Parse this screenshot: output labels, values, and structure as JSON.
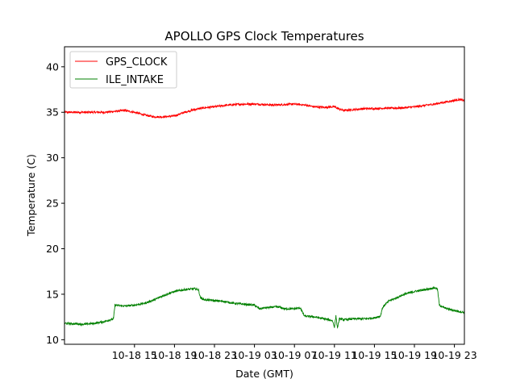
{
  "chart_data": {
    "type": "line",
    "title": "APOLLO GPS Clock Temperatures",
    "xlabel": "Date (GMT)",
    "ylabel": "Temperature (C)",
    "x_unit": "hours since 10-18 08:00 GMT",
    "xlim": [
      0,
      40
    ],
    "ylim": [
      9.5,
      42.2
    ],
    "yticks": [
      10,
      15,
      20,
      25,
      30,
      35,
      40
    ],
    "xticks": [
      {
        "x": 7,
        "label": "10-18 15"
      },
      {
        "x": 11,
        "label": "10-18 19"
      },
      {
        "x": 15,
        "label": "10-18 23"
      },
      {
        "x": 19,
        "label": "10-19 03"
      },
      {
        "x": 23,
        "label": "10-19 07"
      },
      {
        "x": 27,
        "label": "10-19 11"
      },
      {
        "x": 31,
        "label": "10-19 15"
      },
      {
        "x": 35,
        "label": "10-19 19"
      },
      {
        "x": 39,
        "label": "10-19 23"
      }
    ],
    "grid": false,
    "legend_position": "top-left",
    "series": [
      {
        "name": "GPS_CLOCK",
        "color": "#ff0000",
        "points": [
          [
            0,
            35.0
          ],
          [
            2,
            35.0
          ],
          [
            4,
            35.0
          ],
          [
            6,
            35.2
          ],
          [
            7,
            35.0
          ],
          [
            8,
            34.7
          ],
          [
            9,
            34.5
          ],
          [
            10,
            34.5
          ],
          [
            11,
            34.6
          ],
          [
            12,
            35.0
          ],
          [
            13,
            35.3
          ],
          [
            14,
            35.5
          ],
          [
            15,
            35.6
          ],
          [
            16,
            35.75
          ],
          [
            17,
            35.85
          ],
          [
            18,
            35.9
          ],
          [
            19,
            35.9
          ],
          [
            20,
            35.85
          ],
          [
            21,
            35.8
          ],
          [
            22,
            35.85
          ],
          [
            23,
            35.9
          ],
          [
            24,
            35.8
          ],
          [
            25,
            35.6
          ],
          [
            26,
            35.55
          ],
          [
            27,
            35.6
          ],
          [
            27.6,
            35.3
          ],
          [
            28,
            35.2
          ],
          [
            29,
            35.3
          ],
          [
            30,
            35.4
          ],
          [
            31,
            35.4
          ],
          [
            32,
            35.45
          ],
          [
            33,
            35.45
          ],
          [
            34,
            35.5
          ],
          [
            35,
            35.6
          ],
          [
            36,
            35.75
          ],
          [
            37,
            35.9
          ],
          [
            38,
            36.1
          ],
          [
            39,
            36.3
          ],
          [
            39.5,
            36.4
          ],
          [
            40,
            36.3
          ]
        ]
      },
      {
        "name": "ILE_INTAKE",
        "color": "#008000",
        "points": [
          [
            0,
            11.8
          ],
          [
            2,
            11.7
          ],
          [
            3,
            11.8
          ],
          [
            4,
            12.0
          ],
          [
            4.9,
            12.3
          ],
          [
            5.05,
            13.8
          ],
          [
            6,
            13.7
          ],
          [
            7,
            13.8
          ],
          [
            8,
            14.0
          ],
          [
            9,
            14.4
          ],
          [
            10,
            14.9
          ],
          [
            11,
            15.3
          ],
          [
            12,
            15.5
          ],
          [
            13,
            15.6
          ],
          [
            13.4,
            15.5
          ],
          [
            13.6,
            14.6
          ],
          [
            14,
            14.4
          ],
          [
            15,
            14.3
          ],
          [
            16,
            14.2
          ],
          [
            17,
            14.0
          ],
          [
            18,
            13.9
          ],
          [
            19,
            13.8
          ],
          [
            19.5,
            13.4
          ],
          [
            20,
            13.5
          ],
          [
            21,
            13.6
          ],
          [
            21.5,
            13.6
          ],
          [
            22,
            13.4
          ],
          [
            23,
            13.4
          ],
          [
            23.6,
            13.5
          ],
          [
            23.8,
            13.0
          ],
          [
            24,
            12.6
          ],
          [
            25,
            12.5
          ],
          [
            26,
            12.3
          ],
          [
            26.8,
            12.1
          ],
          [
            27,
            11.4
          ],
          [
            27.15,
            12.6
          ],
          [
            27.3,
            11.3
          ],
          [
            27.5,
            12.3
          ],
          [
            28,
            12.2
          ],
          [
            29,
            12.3
          ],
          [
            30,
            12.3
          ],
          [
            31,
            12.4
          ],
          [
            31.6,
            12.6
          ],
          [
            31.8,
            13.5
          ],
          [
            32,
            13.8
          ],
          [
            32.5,
            14.3
          ],
          [
            33,
            14.5
          ],
          [
            34,
            15.0
          ],
          [
            35,
            15.3
          ],
          [
            36,
            15.5
          ],
          [
            37,
            15.7
          ],
          [
            37.3,
            15.6
          ],
          [
            37.5,
            13.8
          ],
          [
            38,
            13.5
          ],
          [
            39,
            13.2
          ],
          [
            40,
            13.0
          ]
        ]
      }
    ]
  }
}
